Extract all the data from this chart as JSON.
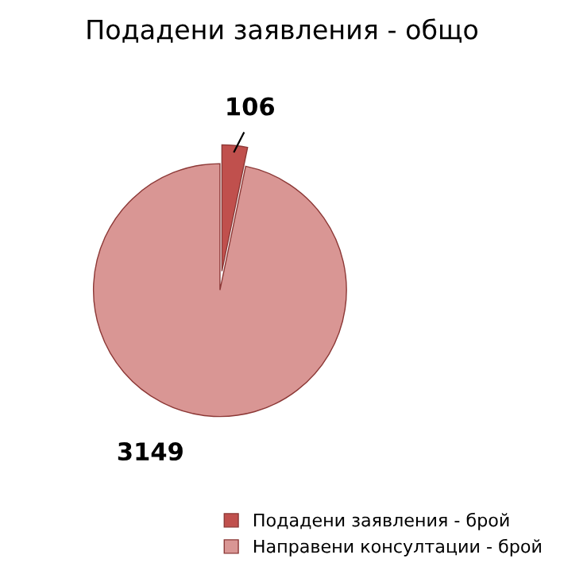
{
  "chart_data": {
    "type": "pie",
    "title": "Подадени заявления - общо",
    "categories": [
      "Подадени заявления - брой",
      "Направени консултации - брой"
    ],
    "values": [
      106,
      3149
    ],
    "colors": [
      "#c0504d",
      "#d99694"
    ],
    "data_labels": true,
    "legend": "bottom right"
  }
}
